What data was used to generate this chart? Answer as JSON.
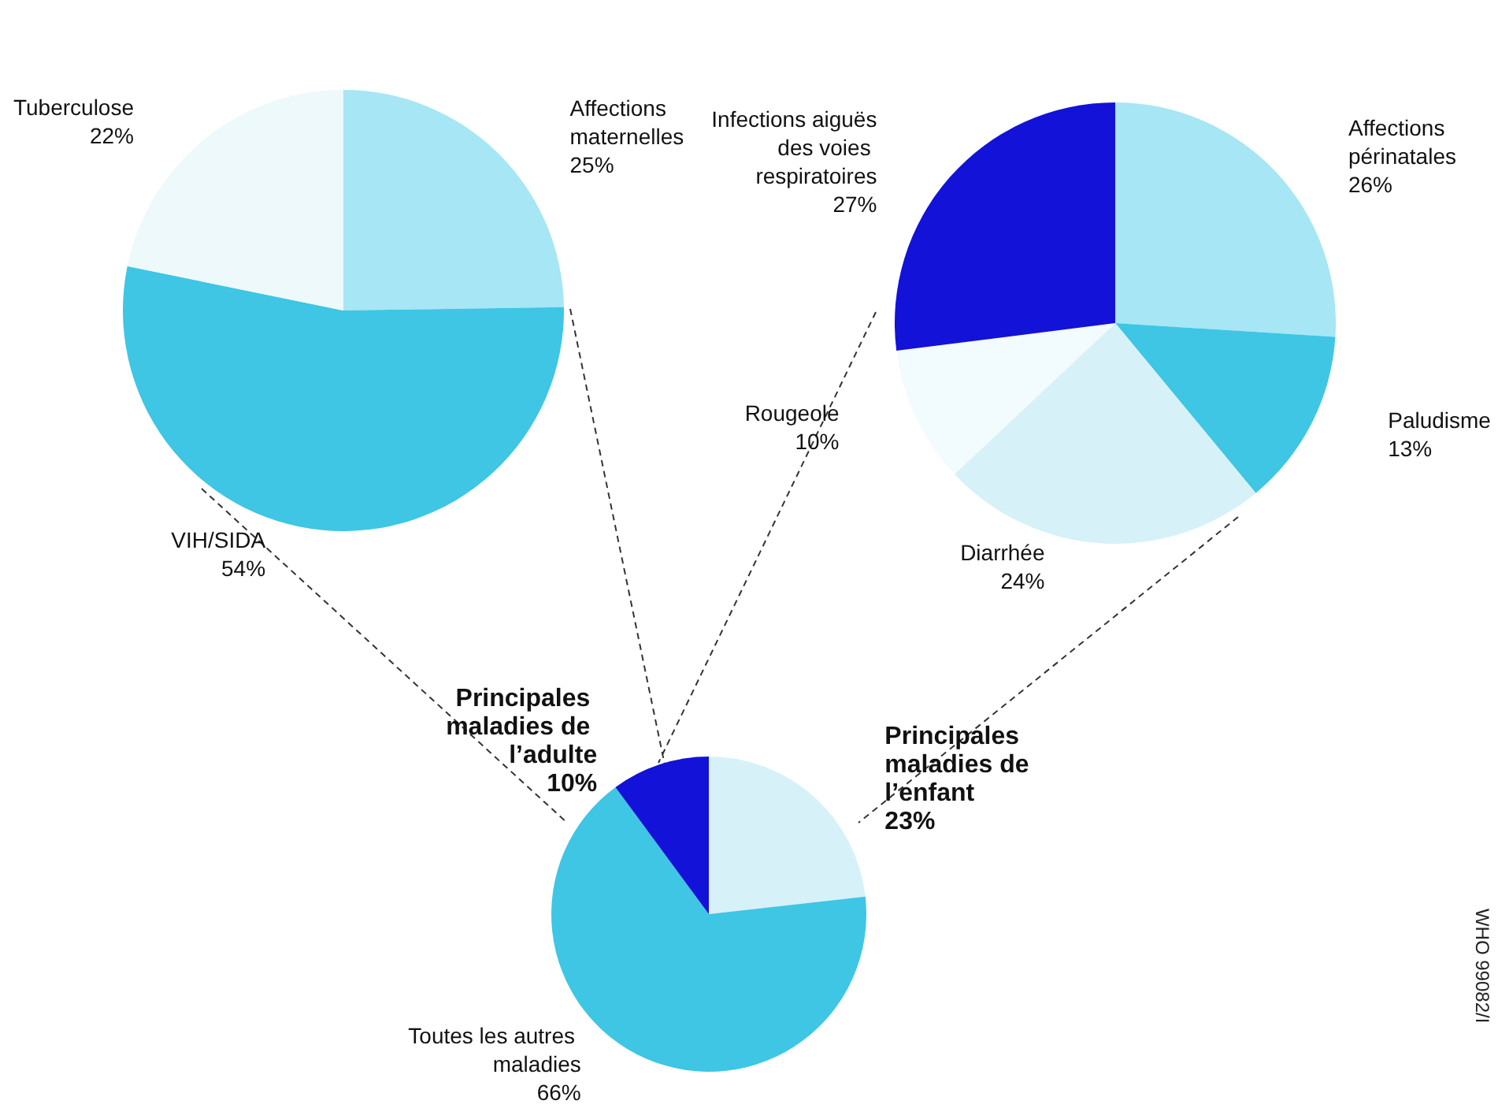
{
  "chart_data": [
    {
      "type": "pie",
      "categories": [
        "Affections maternelles",
        "VIH/SIDA",
        "Tuberculose"
      ],
      "values": [
        25,
        54,
        22
      ],
      "value_labels": [
        "25%",
        "54%",
        "22%"
      ],
      "colors": [
        "#a6e6f5",
        "#3ec6e4",
        "#eef9fc"
      ]
    },
    {
      "type": "pie",
      "categories": [
        "Affections périnatales",
        "Paludisme",
        "Diarrhée",
        "Rougeole",
        "Infections aiguës des voies respiratoires"
      ],
      "values": [
        26,
        13,
        24,
        10,
        27
      ],
      "value_labels": [
        "26%",
        "13%",
        "24%",
        "10%",
        "27%"
      ],
      "colors": [
        "#a6e6f5",
        "#3ec6e4",
        "#d6f2f8",
        "#f2fbfd",
        "#1212d8"
      ]
    },
    {
      "type": "pie",
      "categories": [
        "Principales maladies de l’enfant",
        "Toutes les autres maladies",
        "Principales maladies de l’adulte"
      ],
      "values": [
        23,
        66,
        10
      ],
      "value_labels": [
        "23%",
        "66%",
        "10%"
      ],
      "colors": [
        "#d6f2f8",
        "#3ec6e4",
        "#1212d8"
      ],
      "annotations": [
        "WHO 99082/I"
      ]
    }
  ]
}
